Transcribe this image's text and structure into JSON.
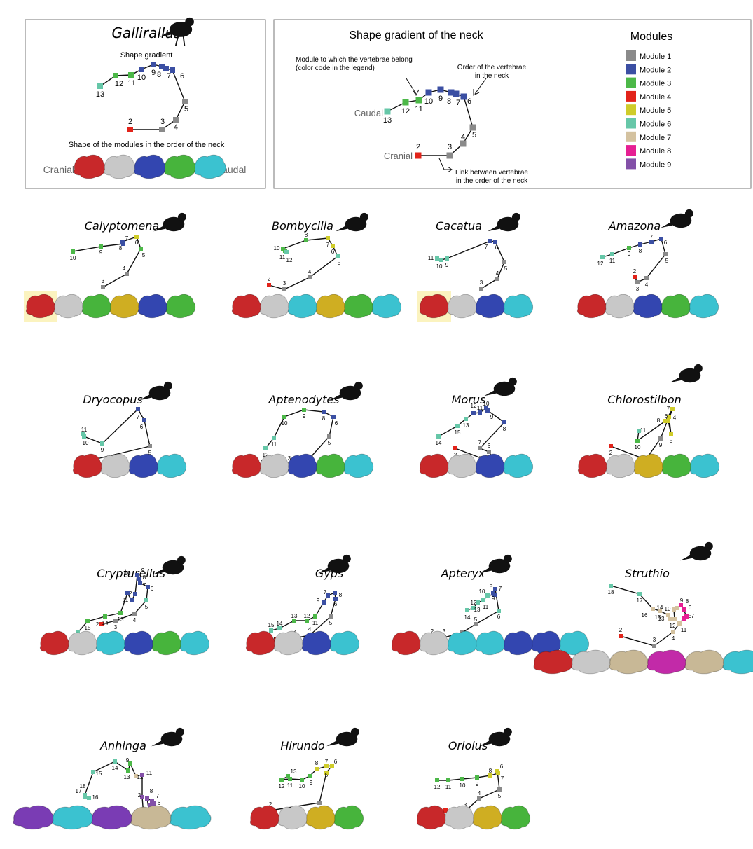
{
  "legend": {
    "title": "Modules",
    "items": [
      {
        "label": "Module 1",
        "color": "#8a8a8a"
      },
      {
        "label": "Module 2",
        "color": "#3b4fa3"
      },
      {
        "label": "Module 3",
        "color": "#4cb848"
      },
      {
        "label": "Module 4",
        "color": "#e2231a"
      },
      {
        "label": "Module 5",
        "color": "#cfcc2a"
      },
      {
        "label": "Module 6",
        "color": "#66c7a8"
      },
      {
        "label": "Module 7",
        "color": "#d4c2a0"
      },
      {
        "label": "Module 8",
        "color": "#e61f93"
      },
      {
        "label": "Module 9",
        "color": "#8350a8"
      }
    ]
  },
  "explainer": {
    "title": "Shape gradient of the neck",
    "caudal": "Caudal",
    "cranial": "Cranial",
    "annotation_module": "Module to which the vertebrae belong\n(color code in the legend)",
    "annotation_order": "Order of the vertebrae\nin the neck",
    "annotation_link": "Link between vertebrae\nin the order of the neck"
  },
  "gallirallus_panel": {
    "species": "Gallirallus",
    "subtitle": "Shape gradient",
    "modules_caption": "Shape of the modules in the order of the neck",
    "cranial": "Cranial",
    "caudal": "Caudal"
  },
  "species_titles": [
    "Calyptomena",
    "Bombycilla",
    "Cacatua",
    "Amazona",
    "Dryocopus",
    "Aptenodytes",
    "Morus",
    "Chlorostilbon",
    "Crypturellus",
    "Gyps",
    "Apteryx",
    "Struthio",
    "Anhinga",
    "Hirundo",
    "Oriolus"
  ],
  "colors": {
    "vertebra_red": "#c8282a",
    "vertebra_grey": "#c8c8c8",
    "vertebra_blue": "#3346b0",
    "vertebra_green": "#47b43c",
    "vertebra_cyan": "#3bc2d0",
    "vertebra_yellow": "#cfae22",
    "vertebra_tan": "#c8b896",
    "vertebra_magenta": "#c22aa8",
    "vertebra_purple": "#7a3cb4",
    "highlight": "#fbf3bf"
  }
}
